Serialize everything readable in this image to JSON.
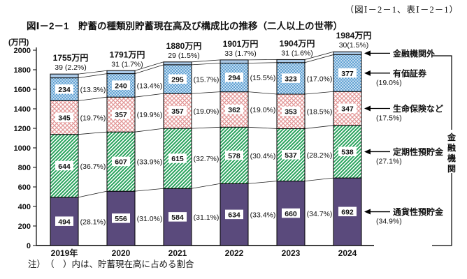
{
  "header": {
    "ref": "（図Ⅰ－2－1、表Ⅰ－2－1）",
    "title": "図Ⅰ－2－1　貯蓄の種類別貯蓄現在高及び構成比の推移（二人以上の世帯）"
  },
  "note": "注）　（　）内は、貯蓄現在高に占める割合",
  "chart_data": {
    "type": "bar",
    "stacked": true,
    "unit_label": "(万円)",
    "ylim": [
      0,
      2000
    ],
    "ytick_step": 200,
    "grid": false,
    "categories": [
      "2019年",
      "2020",
      "2021",
      "2022",
      "2023",
      "2024"
    ],
    "totals": [
      "1755万円",
      "1791万円",
      "1880万円",
      "1901万円",
      "1904万円",
      "1984万円"
    ],
    "total_sub_labels": [
      "39 (2.2%)",
      "31 (1.7%)",
      "29 (1.5%)",
      "33 (1.7%)",
      "31 (1.6%)",
      "30(1.5%)"
    ],
    "series": [
      {
        "key": "demand-deposits",
        "name": "通貨性預貯金",
        "fill": "solid",
        "color": "#5a4a7c",
        "values": [
          494,
          556,
          584,
          634,
          660,
          692
        ],
        "pcts": [
          "28.1",
          "31.0",
          "31.1",
          "33.4",
          "34.7",
          "34.9"
        ]
      },
      {
        "key": "time-deposits",
        "name": "定期性預貯金",
        "fill": "stripe",
        "color": "#28a35c",
        "values": [
          644,
          607,
          615,
          578,
          537,
          538
        ],
        "pcts": [
          "36.7",
          "33.9",
          "32.7",
          "30.4",
          "28.2",
          "27.1"
        ]
      },
      {
        "key": "life-insurance",
        "name": "生命保険など",
        "fill": "lattice",
        "color": "#e39898",
        "values": [
          345,
          357,
          357,
          362,
          353,
          347
        ],
        "pcts": [
          "19.7",
          "19.9",
          "19.0",
          "19.0",
          "18.5",
          "17.5"
        ]
      },
      {
        "key": "securities",
        "name": "有価証券",
        "fill": "checker",
        "color": "#4d94cc",
        "color2": "#d8eaf7",
        "values": [
          234,
          240,
          295,
          294,
          323,
          377
        ],
        "pcts": [
          "13.3",
          "13.4",
          "15.7",
          "15.5",
          "17.0",
          "19.0"
        ]
      },
      {
        "key": "outside-financial-institutions",
        "name": "金融機関外",
        "fill": "solid",
        "color": "#abc9e6",
        "values": [
          39,
          31,
          29,
          33,
          31,
          30
        ],
        "pcts": [
          "2.2",
          "1.7",
          "1.5",
          "1.7",
          "1.6",
          "1.5"
        ]
      }
    ],
    "bracket_label": "金融機関",
    "line_color": "#000000"
  }
}
